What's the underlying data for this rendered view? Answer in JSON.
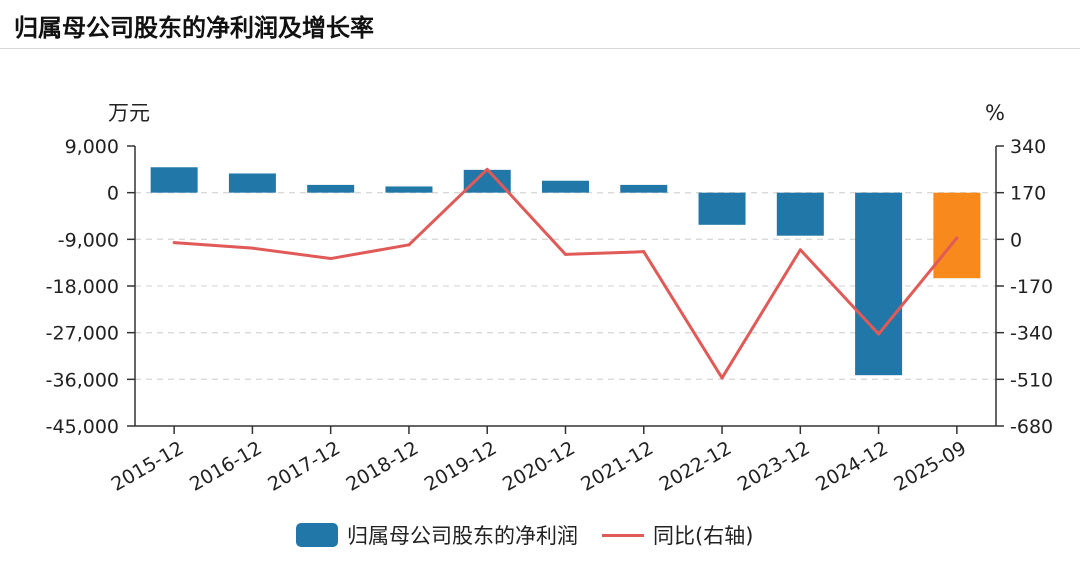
{
  "title": "归属母公司股东的净利润及增长率",
  "colors": {
    "bar": "#2177a7",
    "bar_highlight": "#f7891d",
    "line": "#e05a57",
    "axis": "#333333",
    "grid": "#d9d9d9"
  },
  "chart_data": {
    "type": "bar",
    "categories": [
      "2015-12",
      "2016-12",
      "2017-12",
      "2018-12",
      "2019-12",
      "2020-12",
      "2021-12",
      "2022-12",
      "2023-12",
      "2024-12",
      "2025-09"
    ],
    "left_axis": {
      "unit": "万元",
      "ticks": [
        "9,000",
        "0",
        "-9,000",
        "-18,000",
        "-27,000",
        "-36,000",
        "-45,000"
      ],
      "ylim": [
        -45000,
        9000
      ]
    },
    "right_axis": {
      "unit": "%",
      "ticks": [
        "340",
        "170",
        "0",
        "-170",
        "-340",
        "-510",
        "-680"
      ],
      "ylim": [
        -680,
        340
      ]
    },
    "series": [
      {
        "name": "归属母公司股东的净利润",
        "type": "bar",
        "axis": "left",
        "values": [
          4900,
          3700,
          1500,
          1200,
          4400,
          2300,
          1500,
          -6200,
          -8300,
          -35200,
          -16500
        ],
        "highlight_index": 10
      },
      {
        "name": "同比(右轴)",
        "type": "line",
        "axis": "right",
        "values": [
          -12,
          -32,
          -70,
          -20,
          255,
          -55,
          -45,
          -505,
          -38,
          -345,
          5
        ]
      }
    ],
    "grid": true,
    "legend_position": "bottom"
  }
}
